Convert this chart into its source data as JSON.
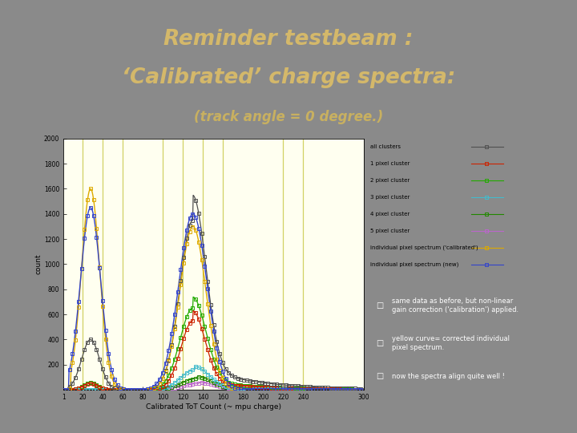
{
  "title_line1": "Reminder testbeam :",
  "title_line2": "‘Calibrated’ charge spectra:",
  "subtitle": "(track angle = 0 degree.)",
  "xlabel": "Calibrated ToT Count (~ mpu charge)",
  "ylabel": "count",
  "bg_color": "#8a8a8a",
  "panel_bg": "#d0d0d0",
  "plot_bg": "#fffff0",
  "legend_bg": "#c8c8c8",
  "title_color": "#d4b86a",
  "subtitle_color": "#c8b060",
  "xmin": 1,
  "xmax": 300,
  "ymin": 1,
  "ymax": 2000,
  "ytick_vals": [
    200,
    400,
    600,
    800,
    1000,
    1200,
    1400,
    1600,
    1800,
    2000
  ],
  "ytick_labels": [
    "200",
    "400",
    "600",
    "800",
    "1000",
    "1200",
    "1400",
    "1600",
    "1800",
    "2000"
  ],
  "xtick_vals": [
    1,
    20,
    40,
    60,
    80,
    100,
    120,
    140,
    160,
    180,
    200,
    220,
    240,
    300
  ],
  "xtick_labels": [
    "1",
    "20",
    "40",
    "60",
    "80",
    "100",
    "120",
    "140",
    "160",
    "180",
    "200",
    "220",
    "240",
    "300"
  ],
  "vlines": [
    20,
    40,
    60,
    100,
    120,
    140,
    160,
    220,
    240
  ],
  "legend_entries": [
    "all clusters",
    "1 pixel cluster",
    "2 pixel cluster",
    "3 pixel cluster",
    "4 pixel cluster",
    "5 pixel cluster",
    "individual pixel spectrum ('calibrated')",
    "individual pixel spectrum (new)"
  ],
  "legend_colors": [
    "#505050",
    "#cc2200",
    "#22aa00",
    "#44bbcc",
    "#228800",
    "#bb66cc",
    "#ddaa00",
    "#3344cc"
  ],
  "note_bullet1": "same data as before, but non-linear\ngain correction ('calibration') applied.",
  "note_bullet2": "yellow curve= corrected individual\npixel spectrum.",
  "note_bullet3": "now the spectra align quite well !"
}
